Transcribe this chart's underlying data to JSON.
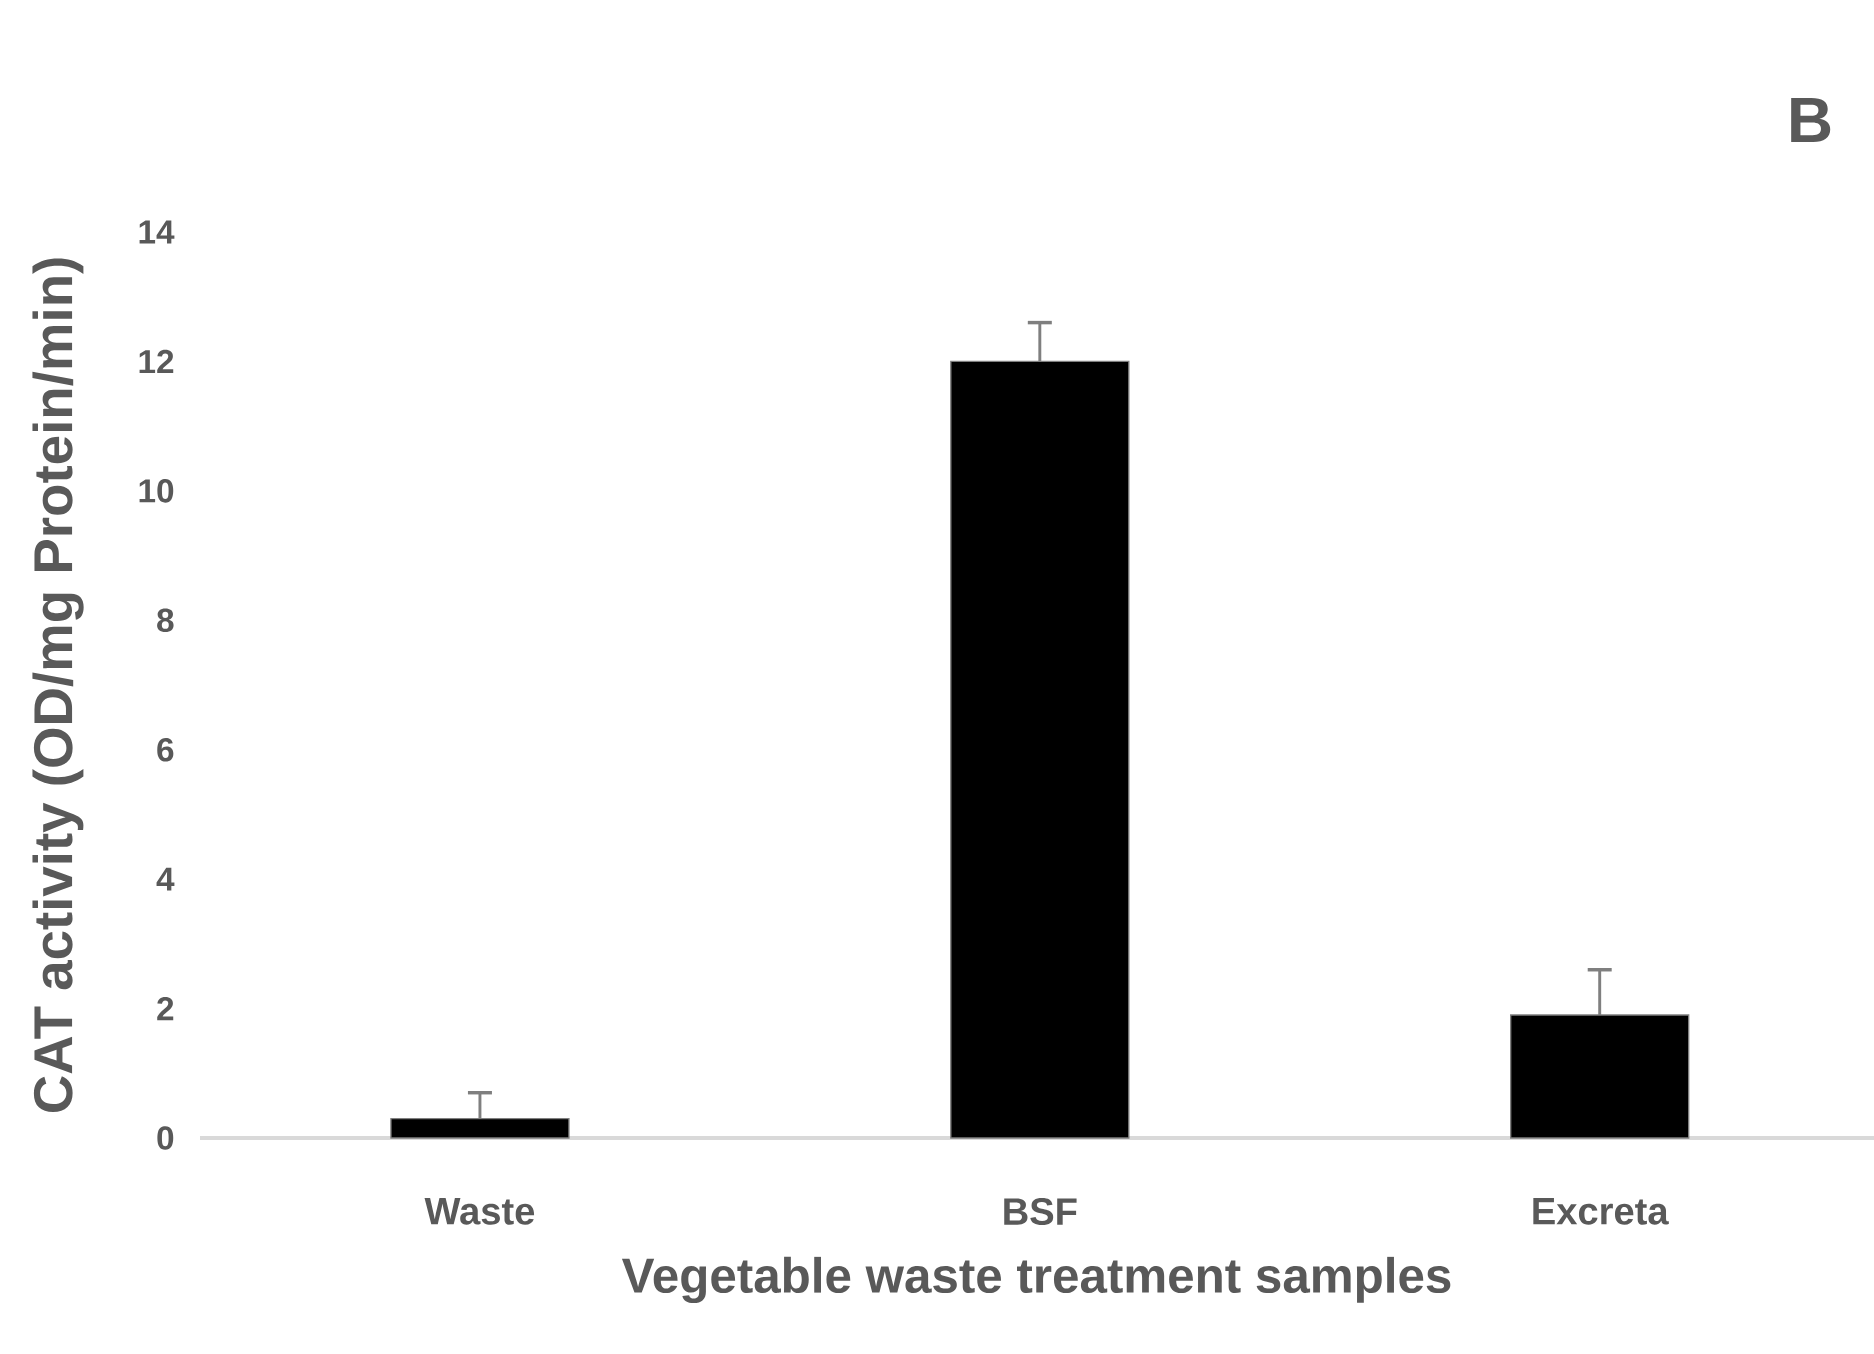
{
  "chart_data": {
    "type": "bar",
    "categories": [
      "Waste",
      "BSF",
      "Excreta"
    ],
    "values": [
      0.3,
      12.0,
      1.9
    ],
    "errors": [
      [
        0.3,
        0.7
      ],
      [
        12.0,
        12.6
      ],
      [
        1.9,
        2.6
      ]
    ],
    "color": "#000000",
    "ylim": [
      0,
      14
    ],
    "yticks": [
      0,
      2,
      4,
      6,
      8,
      10,
      12,
      14
    ],
    "xlabel": "Vegetable waste treatment samples",
    "ylabel": "CAT activity (OD/mg Protein/min)",
    "annotations": [
      "B"
    ]
  }
}
